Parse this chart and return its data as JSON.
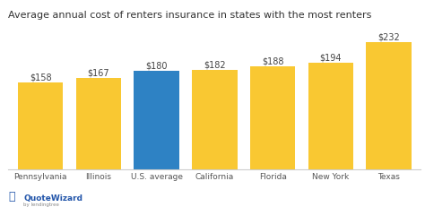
{
  "categories": [
    "Pennsylvania",
    "Illinois",
    "U.S. average",
    "California",
    "Florida",
    "New York",
    "Texas"
  ],
  "values": [
    158,
    167,
    180,
    182,
    188,
    194,
    232
  ],
  "labels": [
    "$158",
    "$167",
    "$180",
    "$182",
    "$188",
    "$194",
    "$232"
  ],
  "bar_colors": [
    "#F9C832",
    "#F9C832",
    "#2E82C4",
    "#F9C832",
    "#F9C832",
    "#F9C832",
    "#F9C832"
  ],
  "title": "Average annual cost of renters insurance in states with the most renters",
  "title_fontsize": 8.0,
  "label_fontsize": 7.0,
  "tick_fontsize": 6.5,
  "background_color": "#FFFFFF",
  "plot_bg_color": "#FFFFFF",
  "ylim": [
    0,
    265
  ],
  "bar_width": 0.78,
  "logo_text": "QuoteWizard",
  "logo_sub": "by lendingtree",
  "logo_color": "#2255AA",
  "logo_sub_color": "#888888"
}
